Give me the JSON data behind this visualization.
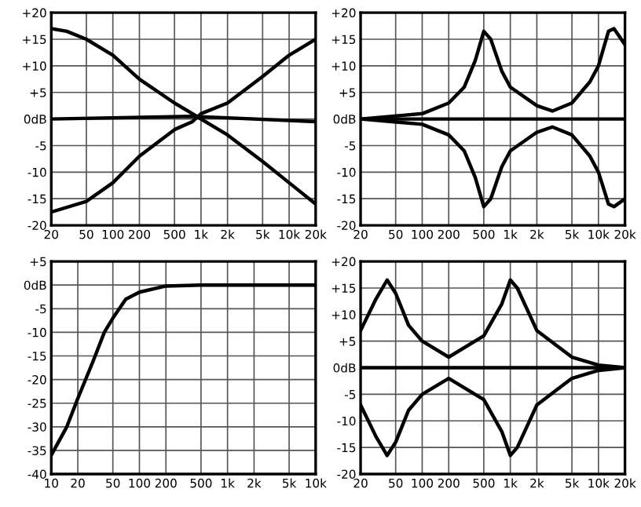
{
  "chart_data": [
    {
      "type": "line",
      "log": "x",
      "grid": true,
      "legend": false,
      "xlim": [
        20,
        20000
      ],
      "ylim": [
        -20,
        20
      ],
      "xticks": [
        20,
        50,
        100,
        200,
        500,
        {
          "value": 1000,
          "label": "1k"
        },
        {
          "value": 2000,
          "label": "2k"
        },
        {
          "value": 5000,
          "label": "5k"
        },
        {
          "value": 10000,
          "label": "10k"
        },
        {
          "value": 20000,
          "label": "20k"
        }
      ],
      "yticks": [
        {
          "value": 20,
          "label": "+20"
        },
        {
          "value": 15,
          "label": "+15"
        },
        {
          "value": 10,
          "label": "+10"
        },
        {
          "value": 5,
          "label": "+5"
        },
        {
          "value": 0,
          "label": "0dB"
        },
        -5,
        -10,
        -15,
        -20
      ],
      "series": [
        {
          "color": "#000000",
          "x": [
            20,
            30,
            50,
            100,
            200,
            500,
            800,
            1000,
            2000,
            5000,
            10000,
            20000
          ],
          "values": [
            17,
            16.5,
            15,
            12,
            7.5,
            3,
            1,
            0,
            -3,
            -8,
            -12,
            -16
          ]
        },
        {
          "color": "#000000",
          "x": [
            20,
            50,
            100,
            200,
            500,
            800,
            1000,
            2000,
            5000,
            10000,
            20000
          ],
          "values": [
            -17.5,
            -15.5,
            -12,
            -7,
            -2,
            -0.5,
            1,
            3,
            8,
            12,
            15
          ]
        },
        {
          "color": "#000000",
          "x": [
            20,
            800,
            20000
          ],
          "values": [
            0,
            0.5,
            -0.5
          ]
        }
      ]
    },
    {
      "type": "line",
      "log": "x",
      "grid": true,
      "legend": false,
      "xlim": [
        20,
        20000
      ],
      "ylim": [
        -20,
        20
      ],
      "xticks": [
        20,
        50,
        100,
        200,
        500,
        {
          "value": 1000,
          "label": "1k"
        },
        {
          "value": 2000,
          "label": "2k"
        },
        {
          "value": 5000,
          "label": "5k"
        },
        {
          "value": 10000,
          "label": "10k"
        },
        {
          "value": 20000,
          "label": "20k"
        }
      ],
      "yticks": [
        {
          "value": 20,
          "label": "+20"
        },
        {
          "value": 15,
          "label": "+15"
        },
        {
          "value": 10,
          "label": "+10"
        },
        {
          "value": 5,
          "label": "+5"
        },
        {
          "value": 0,
          "label": "0dB"
        },
        -5,
        -10,
        -15,
        -20
      ],
      "series": [
        {
          "color": "#000000",
          "x": [
            20,
            100,
            200,
            300,
            400,
            500,
            600,
            800,
            1000,
            2000,
            3000,
            5000,
            8000,
            10000,
            13000,
            15000,
            20000
          ],
          "values": [
            0,
            1,
            3,
            6,
            11,
            16.5,
            15,
            9,
            6,
            2.5,
            1.5,
            3,
            7,
            10,
            16.5,
            17,
            14
          ]
        },
        {
          "color": "#000000",
          "x": [
            20,
            100,
            200,
            300,
            400,
            500,
            600,
            800,
            1000,
            2000,
            3000,
            5000,
            8000,
            10000,
            13000,
            15000,
            20000
          ],
          "values": [
            0,
            -1,
            -3,
            -6,
            -11,
            -16.5,
            -15,
            -9,
            -6,
            -2.5,
            -1.5,
            -3,
            -7,
            -10,
            -16,
            -16.5,
            -15
          ]
        },
        {
          "color": "#000000",
          "x": [
            20,
            20000
          ],
          "values": [
            0,
            0
          ]
        }
      ]
    },
    {
      "type": "line",
      "log": "x",
      "grid": true,
      "legend": false,
      "xlim": [
        10,
        10000
      ],
      "ylim": [
        -40,
        5
      ],
      "xticks": [
        10,
        20,
        50,
        100,
        200,
        500,
        {
          "value": 1000,
          "label": "1k"
        },
        {
          "value": 2000,
          "label": "2k"
        },
        {
          "value": 5000,
          "label": "5k"
        },
        {
          "value": 10000,
          "label": "10k"
        }
      ],
      "yticks": [
        {
          "value": 5,
          "label": "+5"
        },
        {
          "value": 0,
          "label": "0dB"
        },
        -5,
        -10,
        -15,
        -20,
        -25,
        -30,
        -35,
        -40
      ],
      "series": [
        {
          "color": "#000000",
          "x": [
            10,
            15,
            20,
            30,
            40,
            50,
            70,
            100,
            200,
            500,
            1000,
            10000
          ],
          "values": [
            -36,
            -30,
            -24,
            -16,
            -10,
            -7,
            -3,
            -1.5,
            -0.2,
            0,
            0,
            0
          ]
        }
      ]
    },
    {
      "type": "line",
      "log": "x",
      "grid": true,
      "legend": false,
      "xlim": [
        20,
        20000
      ],
      "ylim": [
        -20,
        20
      ],
      "xticks": [
        20,
        50,
        100,
        200,
        500,
        {
          "value": 1000,
          "label": "1k"
        },
        {
          "value": 2000,
          "label": "2k"
        },
        {
          "value": 5000,
          "label": "5k"
        },
        {
          "value": 10000,
          "label": "10k"
        },
        {
          "value": 20000,
          "label": "20k"
        }
      ],
      "yticks": [
        {
          "value": 20,
          "label": "+20"
        },
        {
          "value": 15,
          "label": "+15"
        },
        {
          "value": 10,
          "label": "+10"
        },
        {
          "value": 5,
          "label": "+5"
        },
        {
          "value": 0,
          "label": "0dB"
        },
        -5,
        -10,
        -15,
        -20
      ],
      "series": [
        {
          "color": "#000000",
          "x": [
            20,
            30,
            40,
            50,
            70,
            100,
            200,
            500,
            800,
            1000,
            1200,
            2000,
            5000,
            10000,
            20000
          ],
          "values": [
            7,
            13,
            16.5,
            14,
            8,
            5,
            2,
            6,
            12,
            16.5,
            15,
            7,
            2,
            0.5,
            0
          ]
        },
        {
          "color": "#000000",
          "x": [
            20,
            30,
            40,
            50,
            70,
            100,
            200,
            500,
            800,
            1000,
            1200,
            2000,
            5000,
            10000,
            20000
          ],
          "values": [
            -7,
            -13,
            -16.5,
            -14,
            -8,
            -5,
            -2,
            -6,
            -12,
            -16.5,
            -15,
            -7,
            -2,
            -0.5,
            0
          ]
        },
        {
          "color": "#000000",
          "x": [
            20,
            20000
          ],
          "values": [
            0,
            0
          ]
        }
      ]
    }
  ]
}
